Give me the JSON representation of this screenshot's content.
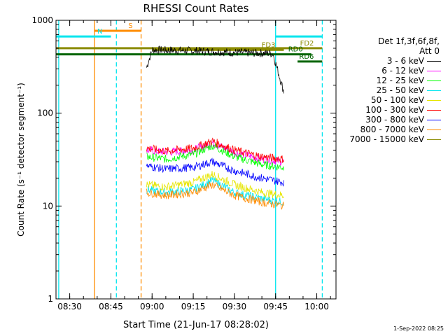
{
  "footer": {
    "date": "1-Sep-2022 08:25"
  },
  "legend": {
    "header_line1": "Det 1f,3f,6f,8f,",
    "header_line2": "Att 0",
    "entries": [
      {
        "label": "3 - 6 keV",
        "color": "#000000"
      },
      {
        "label": "6 - 12 keV",
        "color": "#ff00ff"
      },
      {
        "label": "12 - 25 keV",
        "color": "#00ff00"
      },
      {
        "label": "25 - 50 keV",
        "color": "#00e5ee"
      },
      {
        "label": "50 - 100 keV",
        "color": "#e6e600"
      },
      {
        "label": "100 - 300 keV",
        "color": "#ff0000"
      },
      {
        "label": "300 - 800 keV",
        "color": "#0000ff"
      },
      {
        "label": "800 - 7000 keV",
        "color": "#ff8c00"
      },
      {
        "label": "7000 - 15000 keV",
        "color": "#8b8b00"
      }
    ]
  },
  "chart_data": {
    "type": "line",
    "title": "RHESSI Count Rates",
    "xlabel": "Start Time (21-Jun-17 08:28:02)",
    "ylabel": "Count Rate (s⁻¹ detector segment⁻¹)",
    "x_scale": "time",
    "y_scale": "log",
    "xlim": [
      "08:25",
      "10:07"
    ],
    "ylim": [
      1,
      1000
    ],
    "x_ticks": [
      "08:30",
      "08:45",
      "09:00",
      "09:15",
      "09:30",
      "09:45",
      "10:00"
    ],
    "y_ticks": [
      1,
      10,
      100,
      1000
    ],
    "y_tick_labels": [
      "1",
      "10",
      "100",
      "1000"
    ],
    "series": [
      {
        "name": "3 - 6 keV",
        "color": "#000000",
        "x": [
          "08:58",
          "09:00",
          "09:15",
          "09:30",
          "09:44",
          "09:48"
        ],
        "y": [
          310,
          480,
          470,
          450,
          440,
          170
        ]
      },
      {
        "name": "6 - 12 keV",
        "color": "#ff00ff",
        "x": [
          "08:58",
          "09:05",
          "09:15",
          "09:22",
          "09:30",
          "09:40",
          "09:48"
        ],
        "y": [
          40,
          38,
          40,
          48,
          38,
          32,
          30
        ]
      },
      {
        "name": "12 - 25 keV",
        "color": "#00ff00",
        "x": [
          "08:58",
          "09:05",
          "09:15",
          "09:22",
          "09:30",
          "09:40",
          "09:48"
        ],
        "y": [
          34,
          32,
          36,
          45,
          34,
          28,
          26
        ]
      },
      {
        "name": "25 - 50 keV",
        "color": "#00e5ee",
        "x": [
          "08:58",
          "09:05",
          "09:15",
          "09:22",
          "09:30",
          "09:40",
          "09:48"
        ],
        "y": [
          15,
          14,
          15,
          19,
          14,
          12,
          11
        ]
      },
      {
        "name": "50 - 100 keV",
        "color": "#e6e600",
        "x": [
          "08:58",
          "09:05",
          "09:15",
          "09:22",
          "09:30",
          "09:40",
          "09:48"
        ],
        "y": [
          17,
          16,
          18,
          22,
          17,
          14,
          13
        ]
      },
      {
        "name": "100 - 300 keV",
        "color": "#ff0000",
        "x": [
          "08:58",
          "09:05",
          "09:15",
          "09:22",
          "09:30",
          "09:40",
          "09:48"
        ],
        "y": [
          42,
          39,
          42,
          50,
          40,
          34,
          32
        ]
      },
      {
        "name": "300 - 800 keV",
        "color": "#0000ff",
        "x": [
          "08:58",
          "09:05",
          "09:15",
          "09:22",
          "09:30",
          "09:40",
          "09:48"
        ],
        "y": [
          27,
          25,
          26,
          30,
          24,
          20,
          18
        ]
      },
      {
        "name": "800 - 7000 keV",
        "color": "#ff8c00",
        "x": [
          "08:58",
          "09:05",
          "09:15",
          "09:22",
          "09:30",
          "09:40",
          "09:48"
        ],
        "y": [
          14,
          13,
          14,
          17,
          13,
          11,
          10
        ]
      },
      {
        "name": "7000 - 15000 keV",
        "color": "#8b8b00",
        "x": [],
        "y": []
      }
    ],
    "event_bars": [
      {
        "label": "S",
        "color": "#ff8c00",
        "x_start": "08:39",
        "x_end": "08:56",
        "y": 770
      },
      {
        "label": "N",
        "color": "#00e5ee",
        "x_start": "08:25",
        "x_end": "08:45",
        "y": 670
      },
      {
        "label": "",
        "color": "#00e5ee",
        "x_start": "09:45",
        "x_end": "10:02",
        "y": 670
      },
      {
        "label": "FD2",
        "color": "#8b8b00",
        "x_start": "08:25",
        "x_end": "10:02",
        "y": 500
      },
      {
        "label": "FD3",
        "color": "#8b8b00",
        "x_start": "09:00",
        "x_end": "09:48",
        "y": 480
      },
      {
        "label": "RD0",
        "color": "#006400",
        "x_start": "08:25",
        "x_end": "09:58",
        "y": 430
      },
      {
        "label": "RD6",
        "color": "#006400",
        "x_start": "09:53",
        "x_end": "10:02",
        "y": 360
      }
    ],
    "vlines": [
      {
        "x": "08:26",
        "color": "#00e5ee",
        "style": "solid"
      },
      {
        "x": "08:39",
        "color": "#ff8c00",
        "style": "solid"
      },
      {
        "x": "08:47",
        "color": "#00e5ee",
        "style": "dashed"
      },
      {
        "x": "08:56",
        "color": "#ff8c00",
        "style": "dashed"
      },
      {
        "x": "09:45",
        "color": "#00e5ee",
        "style": "solid"
      },
      {
        "x": "10:02",
        "color": "#00e5ee",
        "style": "dashed"
      }
    ]
  }
}
